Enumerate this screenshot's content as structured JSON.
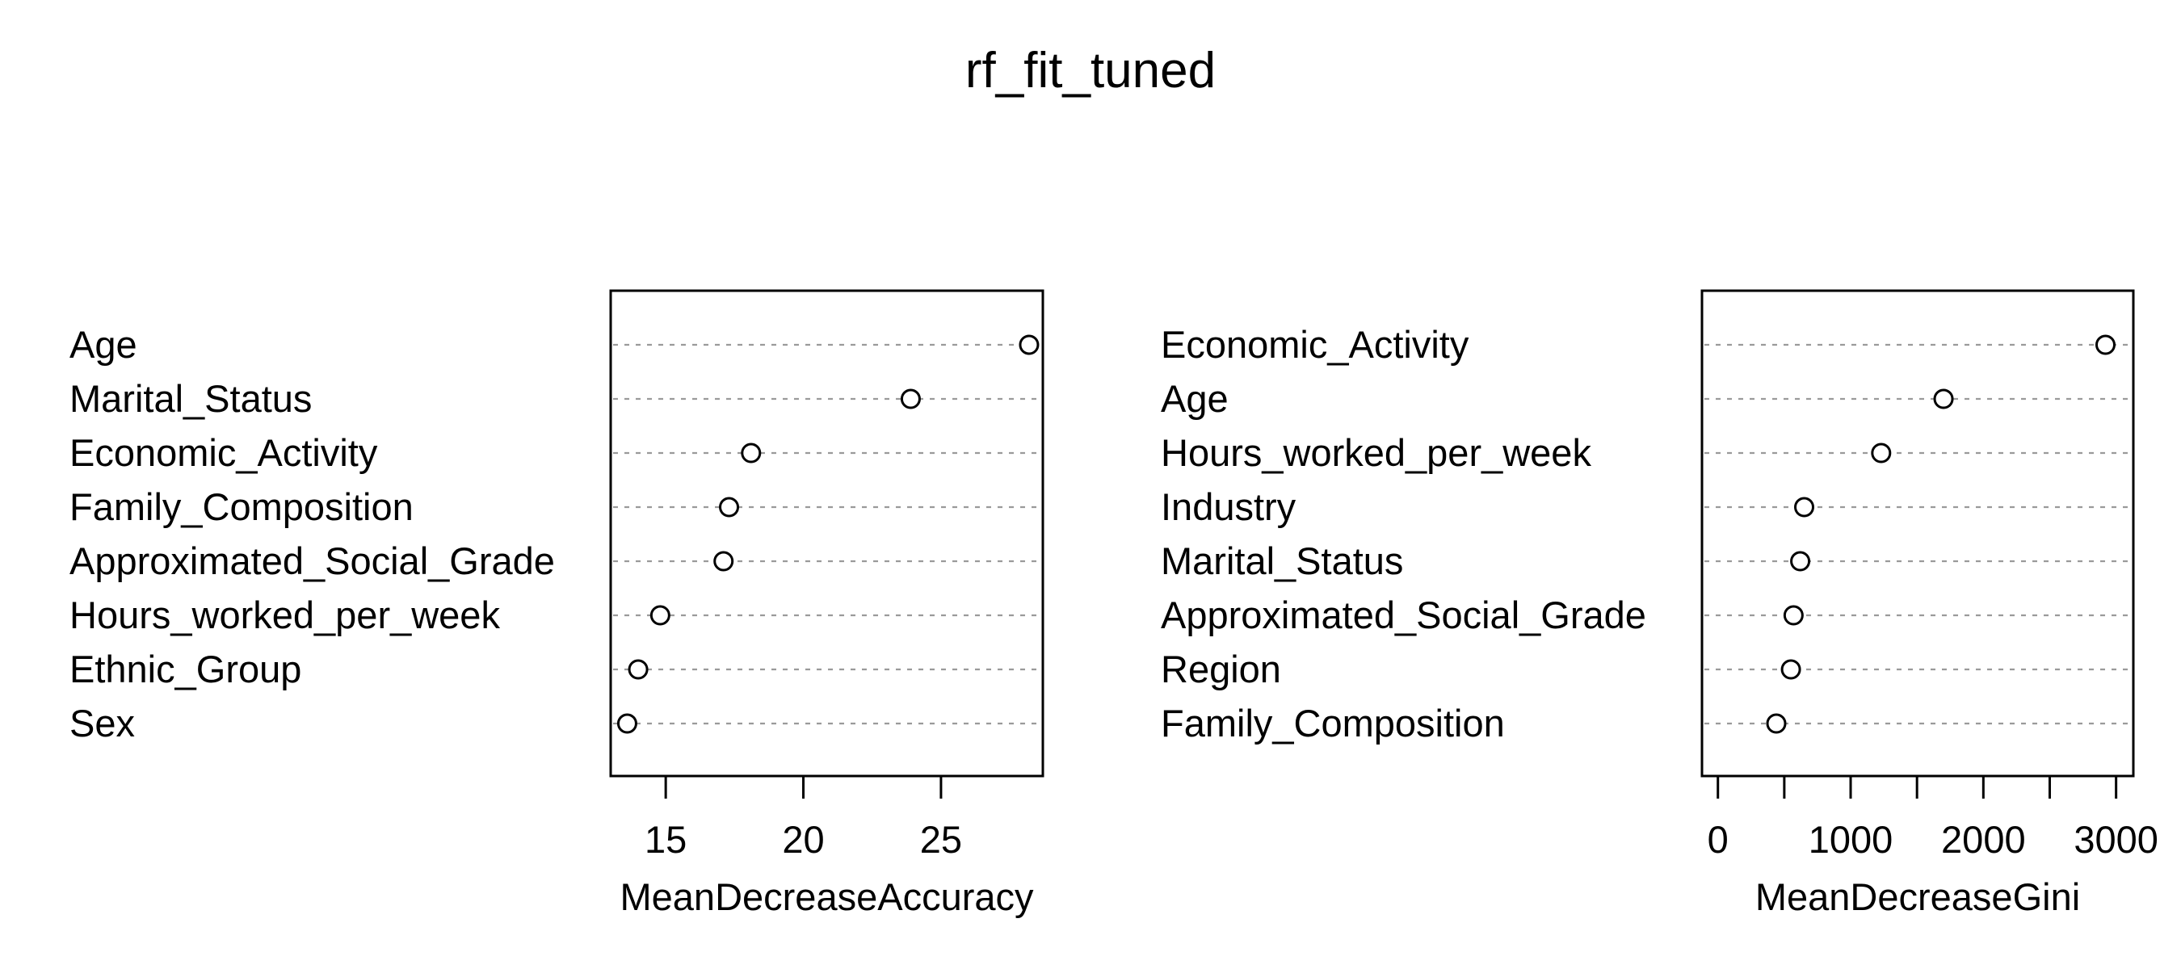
{
  "title": "rf_fit_tuned",
  "chart_data": [
    {
      "type": "scatter",
      "subtype": "dotchart",
      "xlabel": "MeanDecreaseAccuracy",
      "xlim": [
        13.0,
        28.7
      ],
      "xticks": [
        15,
        20,
        25
      ],
      "xtick_labels": [
        "15",
        "20",
        "25"
      ],
      "grid": "dotted lines per category",
      "categories": [
        "Age",
        "Marital_Status",
        "Economic_Activity",
        "Family_Composition",
        "Approximated_Social_Grade",
        "Hours_worked_per_week",
        "Ethnic_Group",
        "Sex"
      ],
      "values": [
        28.2,
        23.9,
        18.1,
        17.3,
        17.1,
        14.8,
        14.0,
        13.6
      ]
    },
    {
      "type": "scatter",
      "subtype": "dotchart",
      "xlabel": "MeanDecreaseGini",
      "xlim": [
        -120,
        3130
      ],
      "xticks": [
        0,
        500,
        1000,
        1500,
        2000,
        2500,
        3000
      ],
      "xtick_labels": [
        "0",
        "",
        "1000",
        "",
        "2000",
        "",
        "3000"
      ],
      "grid": "dotted lines per category",
      "categories": [
        "Economic_Activity",
        "Age",
        "Hours_worked_per_week",
        "Industry",
        "Marital_Status",
        "Approximated_Social_Grade",
        "Region",
        "Family_Composition"
      ],
      "values": [
        2920,
        1700,
        1230,
        650,
        620,
        570,
        550,
        440
      ]
    }
  ]
}
